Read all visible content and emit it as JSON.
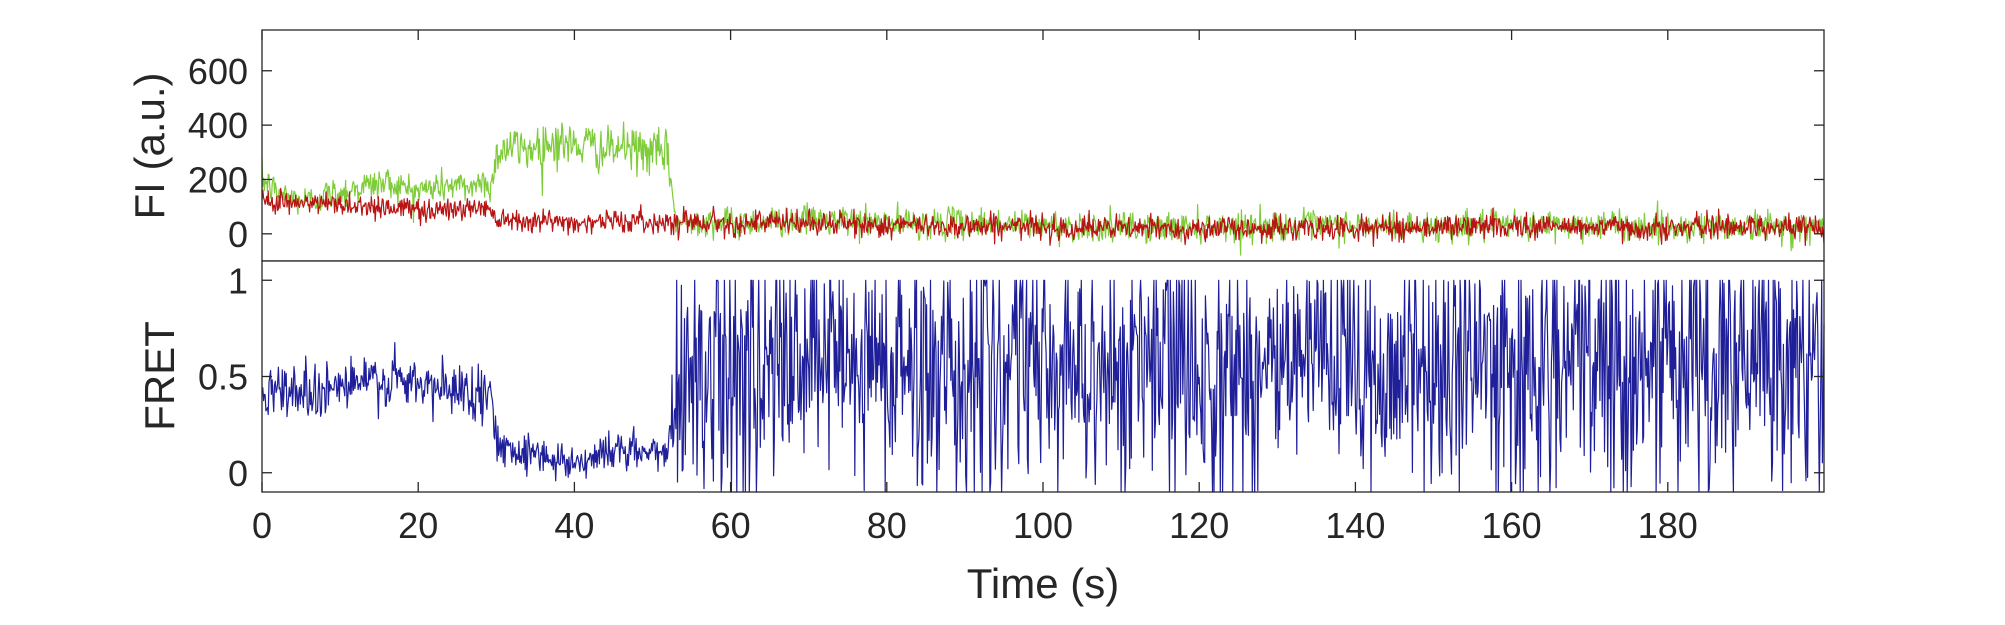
{
  "chart_data": [
    {
      "type": "line",
      "title": "",
      "xlabel": "",
      "ylabel": "FI (a.u.)",
      "xlim": [
        0,
        200
      ],
      "ylim": [
        -100,
        750
      ],
      "yticks": [
        0,
        200,
        400,
        600
      ],
      "ytick_labels": [
        "0",
        "200",
        "400",
        "600"
      ],
      "grid": false,
      "colors": {
        "green": "#7fcc3a",
        "red": "#b81414"
      },
      "series": [
        {
          "key": "green",
          "x": [
            0,
            2,
            4,
            6,
            8,
            10,
            12,
            14,
            16,
            18,
            20,
            22,
            24,
            26,
            28,
            29.5,
            30,
            32,
            34,
            36,
            38,
            40,
            42,
            44,
            46,
            48,
            50,
            52,
            53,
            56,
            60,
            70,
            80,
            90,
            100,
            110,
            120,
            130,
            140,
            150,
            160,
            170,
            180,
            190,
            200
          ],
          "values": [
            200,
            150,
            130,
            120,
            140,
            150,
            170,
            180,
            190,
            170,
            160,
            170,
            180,
            170,
            190,
            180,
            300,
            320,
            310,
            330,
            340,
            320,
            330,
            300,
            320,
            310,
            300,
            290,
            40,
            50,
            40,
            50,
            40,
            40,
            30,
            20,
            25,
            30,
            30,
            25,
            30,
            35,
            25,
            30,
            20
          ],
          "noise": [
            60,
            60,
            60,
            60,
            60,
            60,
            60,
            60,
            60,
            60,
            60,
            60,
            60,
            60,
            60,
            60,
            80,
            80,
            80,
            90,
            90,
            80,
            80,
            80,
            80,
            80,
            80,
            80,
            55,
            55,
            55,
            55,
            55,
            55,
            55,
            55,
            55,
            55,
            55,
            55,
            55,
            55,
            55,
            55,
            55
          ]
        },
        {
          "key": "red",
          "x": [
            0,
            5,
            10,
            15,
            20,
            25,
            29,
            30,
            35,
            40,
            45,
            50,
            53,
            60,
            70,
            80,
            90,
            100,
            110,
            120,
            130,
            140,
            150,
            160,
            170,
            180,
            190,
            200
          ],
          "values": [
            130,
            110,
            110,
            100,
            90,
            90,
            100,
            60,
            50,
            40,
            50,
            40,
            50,
            40,
            40,
            30,
            30,
            25,
            20,
            20,
            20,
            20,
            25,
            30,
            25,
            20,
            30,
            20
          ],
          "noise": [
            45,
            45,
            45,
            45,
            45,
            45,
            45,
            40,
            40,
            40,
            40,
            40,
            45,
            45,
            45,
            45,
            45,
            45,
            45,
            45,
            45,
            45,
            45,
            45,
            45,
            45,
            45,
            45
          ]
        }
      ]
    },
    {
      "type": "line",
      "title": "",
      "xlabel": "Time (s)",
      "ylabel": "FRET",
      "xlim": [
        0,
        200
      ],
      "ylim": [
        -0.1,
        1.1
      ],
      "yticks": [
        0,
        0.5,
        1
      ],
      "ytick_labels": [
        "0",
        "0.5",
        "1"
      ],
      "xticks": [
        0,
        20,
        40,
        60,
        80,
        100,
        120,
        140,
        160,
        180
      ],
      "xtick_labels": [
        "0",
        "20",
        "40",
        "60",
        "80",
        "100",
        "120",
        "140",
        "160",
        "180"
      ],
      "grid": false,
      "colors": {
        "blue": "#1f1f99"
      },
      "series": [
        {
          "key": "blue",
          "x": [
            0,
            5,
            10,
            15,
            20,
            25,
            29,
            30,
            35,
            40,
            45,
            50,
            52,
            53,
            60,
            80,
            100,
            120,
            140,
            160,
            180,
            200
          ],
          "values": [
            0.45,
            0.42,
            0.45,
            0.48,
            0.45,
            0.42,
            0.45,
            0.15,
            0.1,
            0.05,
            0.12,
            0.1,
            0.1,
            0.55,
            0.55,
            0.55,
            0.55,
            0.55,
            0.55,
            0.55,
            0.55,
            0.55
          ],
          "noise": [
            0.15,
            0.15,
            0.15,
            0.15,
            0.15,
            0.15,
            0.15,
            0.1,
            0.1,
            0.1,
            0.1,
            0.1,
            0.1,
            0.7,
            0.7,
            0.7,
            0.7,
            0.7,
            0.7,
            0.7,
            0.7,
            0.7
          ]
        }
      ]
    }
  ]
}
